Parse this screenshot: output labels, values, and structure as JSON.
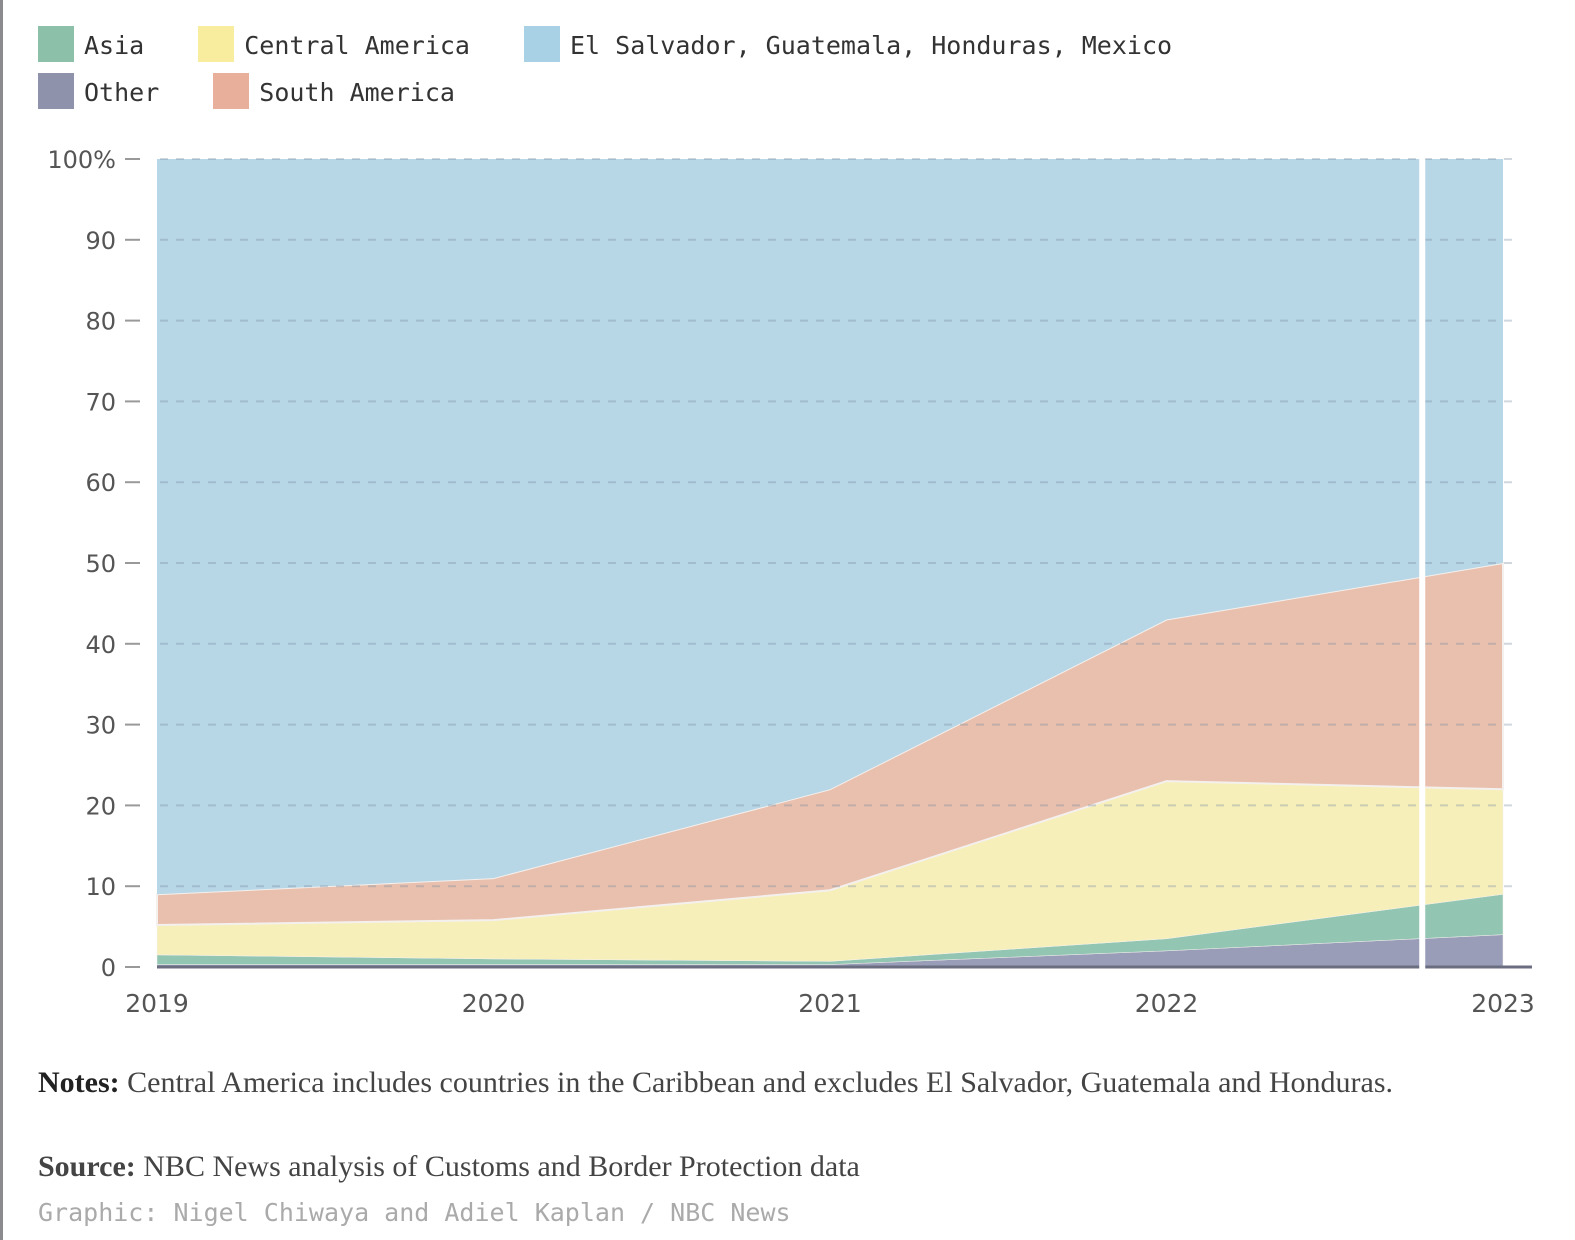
{
  "chart_data": {
    "type": "area",
    "stacked": true,
    "x": [
      2019,
      2020,
      2021,
      2022,
      2023
    ],
    "x_tick_labels": [
      "2019",
      "2020",
      "2021",
      "2022",
      "2023"
    ],
    "y_tick_labels": [
      "0",
      "10",
      "20",
      "30",
      "40",
      "50",
      "60",
      "70",
      "80",
      "90",
      "100%"
    ],
    "ylim": [
      0,
      100
    ],
    "grid": "horizontal dashed",
    "legend_position": "top",
    "series": [
      {
        "name": "Other",
        "color": "#9a9db8",
        "values": [
          0.3,
          0.3,
          0.3,
          2,
          4
        ]
      },
      {
        "name": "Asia",
        "color": "#93c6b2",
        "values": [
          1.2,
          0.7,
          0.4,
          1.5,
          5
        ]
      },
      {
        "name": "Central America",
        "color": "#f7efba",
        "values": [
          3.7,
          4.8,
          8.8,
          19.5,
          13
        ]
      },
      {
        "name": "South America",
        "color": "#e9c0ad",
        "values": [
          3.8,
          5.2,
          12.5,
          20,
          28
        ]
      },
      {
        "name": "El Salvador, Guatemala, Honduras, Mexico",
        "color": "#b7d6e6",
        "values": [
          91,
          89,
          78,
          57,
          50
        ]
      }
    ],
    "legend": [
      {
        "name": "Asia",
        "color": "#8cc0a8"
      },
      {
        "name": "Central America",
        "color": "#f8ec9f"
      },
      {
        "name": "El Salvador, Guatemala, Honduras, Mexico",
        "color": "#a8d1e6"
      },
      {
        "name": "Other",
        "color": "#8e92ab"
      },
      {
        "name": "South America",
        "color": "#e8b09a"
      }
    ],
    "marker_line_x": 2022.76
  },
  "notes": {
    "notes_label": "Notes:",
    "notes_text": " Central America includes countries in the Caribbean and excludes El Salvador, Guatemala and Honduras.",
    "source_label": "Source:",
    "source_text": " NBC News analysis of Customs and Border Protection data",
    "credit": "Graphic: Nigel Chiwaya and Adiel Kaplan / NBC News"
  }
}
